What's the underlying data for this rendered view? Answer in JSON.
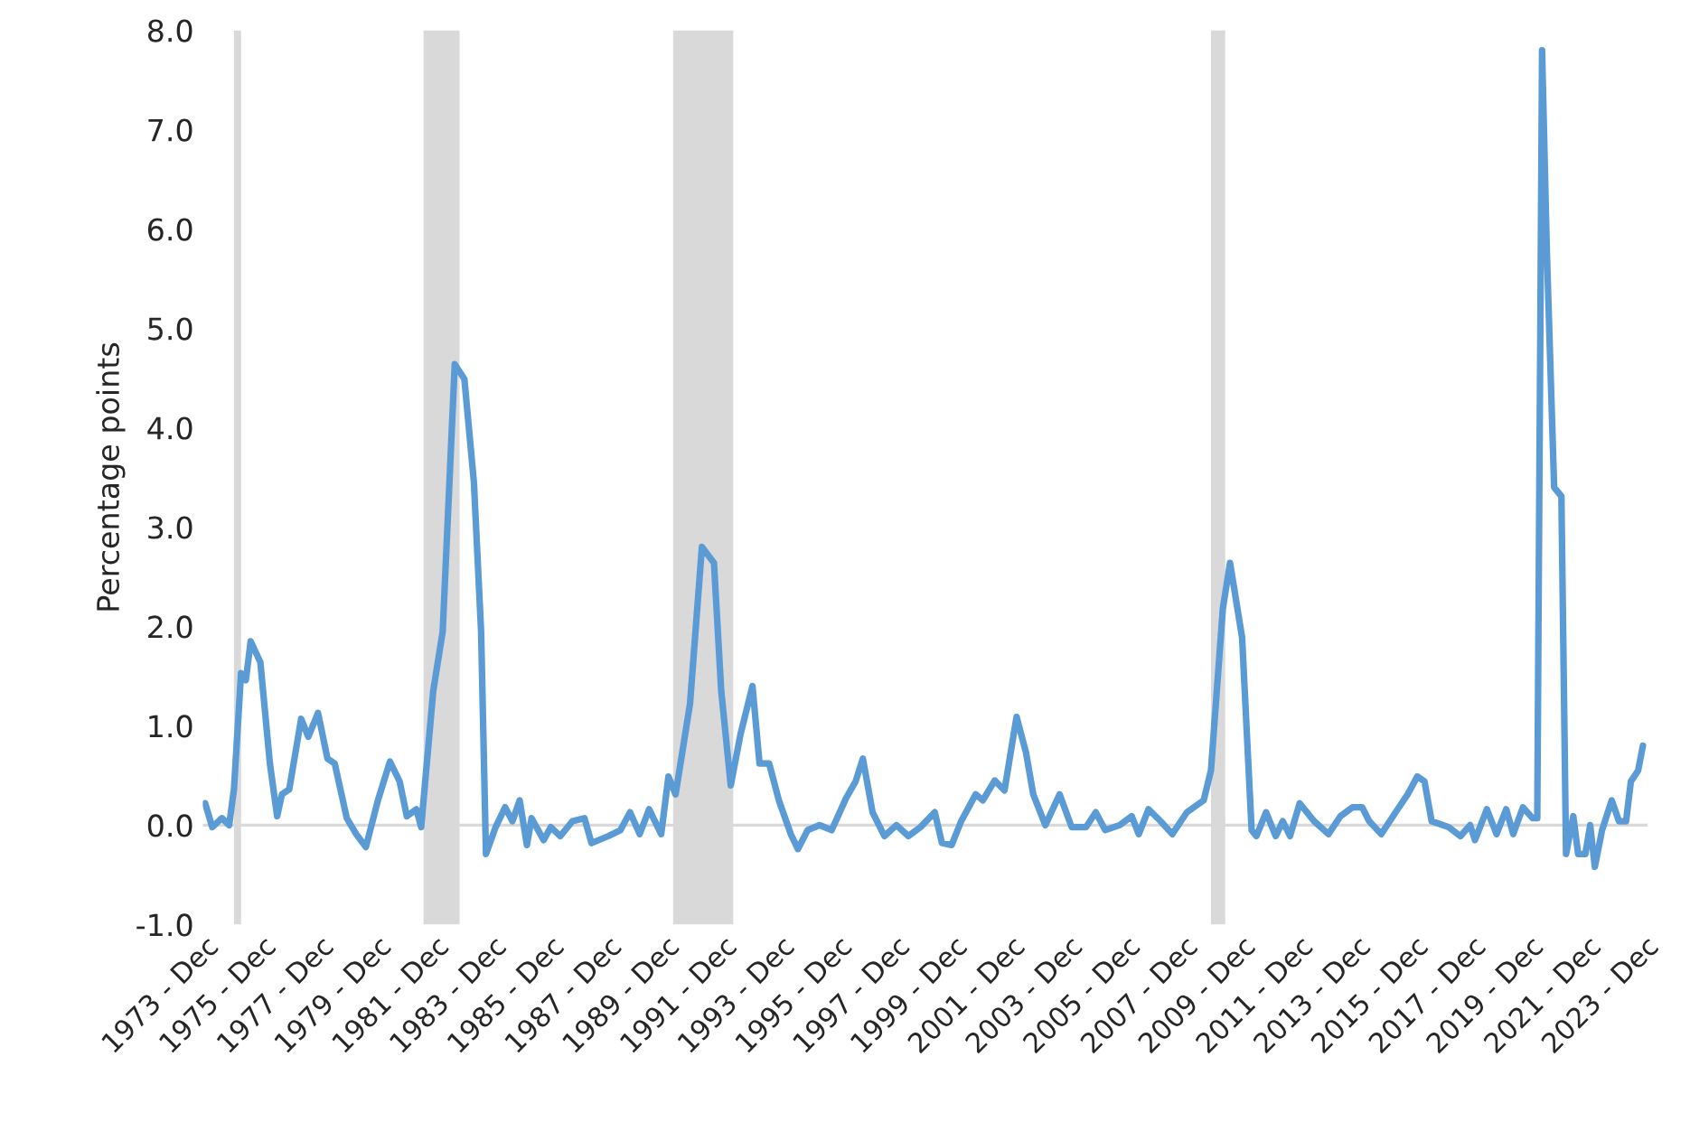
{
  "chart_data": {
    "type": "line",
    "ylabel": "Percentage points",
    "x": [
      "1973-12",
      "1974-03",
      "1974-07",
      "1974-10",
      "1974-12",
      "1975-03",
      "1975-05",
      "1975-07",
      "1975-11",
      "1976-03",
      "1976-06",
      "1976-08",
      "1976-11",
      "1977-04",
      "1977-07",
      "1977-11",
      "1978-03",
      "1978-06",
      "1978-11",
      "1979-03",
      "1979-07",
      "1979-12",
      "1980-05",
      "1980-09",
      "1980-12",
      "1981-04",
      "1981-06",
      "1981-11",
      "1982-03",
      "1982-08",
      "1982-12",
      "1983-04",
      "1983-07",
      "1983-09",
      "1984-01",
      "1984-05",
      "1984-08",
      "1984-11",
      "1985-02",
      "1985-04",
      "1985-09",
      "1985-12",
      "1986-04",
      "1986-09",
      "1987-02",
      "1987-05",
      "1987-12",
      "1988-05",
      "1988-09",
      "1989-01",
      "1989-05",
      "1989-10",
      "1990-01",
      "1990-04",
      "1990-10",
      "1991-03",
      "1991-08",
      "1991-11",
      "1992-03",
      "1992-07",
      "1992-12",
      "1993-03",
      "1993-07",
      "1993-11",
      "1994-04",
      "1994-07",
      "1994-11",
      "1995-04",
      "1995-09",
      "1996-03",
      "1996-07",
      "1996-10",
      "1997-02",
      "1997-07",
      "1997-12",
      "1998-05",
      "1998-10",
      "1999-04",
      "1999-07",
      "1999-11",
      "2000-03",
      "2000-09",
      "2000-12",
      "2001-05",
      "2001-09",
      "2002-02",
      "2002-06",
      "2002-09",
      "2003-02",
      "2003-08",
      "2004-01",
      "2004-07",
      "2004-11",
      "2005-03",
      "2005-09",
      "2006-02",
      "2006-05",
      "2006-09",
      "2007-02",
      "2007-07",
      "2008-01",
      "2008-08",
      "2008-11",
      "2009-04",
      "2009-07",
      "2009-12",
      "2010-04",
      "2010-06",
      "2010-10",
      "2011-02",
      "2011-05",
      "2011-08",
      "2011-12",
      "2012-06",
      "2012-12",
      "2013-05",
      "2013-10",
      "2014-02",
      "2014-05",
      "2014-10",
      "2015-04",
      "2015-09",
      "2016-01",
      "2016-04",
      "2016-07",
      "2017-02",
      "2017-07",
      "2017-11",
      "2018-01",
      "2018-06",
      "2018-10",
      "2019-02",
      "2019-05",
      "2019-09",
      "2020-01",
      "2020-03",
      "2020-05",
      "2020-07",
      "2020-10",
      "2021-01",
      "2021-03",
      "2021-06",
      "2021-08",
      "2021-11",
      "2022-01",
      "2022-03",
      "2022-06",
      "2022-10",
      "2023-01",
      "2023-04",
      "2023-06",
      "2023-09",
      "2023-11"
    ],
    "series": [
      {
        "color": "#5b9bd5",
        "values": [
          0.22,
          -0.02,
          0.07,
          0,
          0.36,
          1.53,
          1.46,
          1.85,
          1.64,
          0.62,
          0.09,
          0.31,
          0.36,
          1.07,
          0.89,
          1.13,
          0.67,
          0.62,
          0.07,
          -0.09,
          -0.22,
          0.25,
          0.64,
          0.44,
          0.09,
          0.16,
          -0.02,
          1.35,
          1.95,
          4.64,
          4.49,
          3.45,
          1.95,
          -0.29,
          -0.02,
          0.18,
          0.04,
          0.25,
          -0.2,
          0.07,
          -0.15,
          -0.02,
          -0.11,
          0.04,
          0.07,
          -0.18,
          -0.11,
          -0.05,
          0.13,
          -0.09,
          0.16,
          -0.09,
          0.49,
          0.31,
          1.22,
          2.8,
          2.64,
          1.35,
          0.4,
          0.91,
          1.4,
          0.62,
          0.62,
          0.25,
          -0.09,
          -0.24,
          -0.05,
          0,
          -0.05,
          0.27,
          0.44,
          0.67,
          0.13,
          -0.11,
          0,
          -0.11,
          -0.02,
          0.13,
          -0.18,
          -0.2,
          0.04,
          0.31,
          0.25,
          0.45,
          0.35,
          1.09,
          0.73,
          0.31,
          0,
          0.31,
          -0.02,
          -0.02,
          0.13,
          -0.05,
          0,
          0.09,
          -0.09,
          0.16,
          0.04,
          -0.09,
          0.13,
          0.25,
          0.55,
          2.18,
          2.64,
          1.89,
          -0.05,
          -0.11,
          0.13,
          -0.11,
          0.04,
          -0.11,
          0.22,
          0.04,
          -0.09,
          0.09,
          0.18,
          0.18,
          0.04,
          -0.09,
          0.13,
          0.31,
          0.49,
          0.44,
          0.04,
          -0.02,
          -0.11,
          0,
          -0.15,
          0.16,
          -0.09,
          0.16,
          -0.09,
          0.18,
          0.07,
          0.07,
          7.8,
          5.76,
          3.4,
          3.31,
          -0.29,
          0.09,
          -0.29,
          -0.29,
          0,
          -0.42,
          -0.05,
          0.25,
          0.04,
          0.04,
          0.44,
          0.55,
          0.8
        ]
      }
    ],
    "xlim": [
      "1973-11",
      "2024-01"
    ],
    "xticks": [
      {
        "value": "1973-12",
        "label": "1973 - Dec"
      },
      {
        "value": "1975-12",
        "label": "1975 - Dec"
      },
      {
        "value": "1977-12",
        "label": "1977 - Dec"
      },
      {
        "value": "1979-12",
        "label": "1979 - Dec"
      },
      {
        "value": "1981-12",
        "label": "1981 - Dec"
      },
      {
        "value": "1983-12",
        "label": "1983 - Dec"
      },
      {
        "value": "1985-12",
        "label": "1985 - Dec"
      },
      {
        "value": "1987-12",
        "label": "1987 - Dec"
      },
      {
        "value": "1989-12",
        "label": "1989 - Dec"
      },
      {
        "value": "1991-12",
        "label": "1991 - Dec"
      },
      {
        "value": "1993-12",
        "label": "1993 - Dec"
      },
      {
        "value": "1995-12",
        "label": "1995 - Dec"
      },
      {
        "value": "1997-12",
        "label": "1997 - Dec"
      },
      {
        "value": "1999-12",
        "label": "1999 - Dec"
      },
      {
        "value": "2001-12",
        "label": "2001 - Dec"
      },
      {
        "value": "2003-12",
        "label": "2003 - Dec"
      },
      {
        "value": "2005-12",
        "label": "2005 - Dec"
      },
      {
        "value": "2007-12",
        "label": "2007 - Dec"
      },
      {
        "value": "2009-12",
        "label": "2009 - Dec"
      },
      {
        "value": "2011-12",
        "label": "2011 - Dec"
      },
      {
        "value": "2013-12",
        "label": "2013 - Dec"
      },
      {
        "value": "2015-12",
        "label": "2015 - Dec"
      },
      {
        "value": "2017-12",
        "label": "2017 - Dec"
      },
      {
        "value": "2019-12",
        "label": "2019 - Dec"
      },
      {
        "value": "2021-12",
        "label": "2021 - Dec"
      },
      {
        "value": "2023-12",
        "label": "2023 - Dec"
      }
    ],
    "ylim": [
      -1,
      8
    ],
    "yticks": [
      {
        "value": -1,
        "label": "-1.0"
      },
      {
        "value": 0,
        "label": "0.0"
      },
      {
        "value": 1,
        "label": "1.0"
      },
      {
        "value": 2,
        "label": "2.0"
      },
      {
        "value": 3,
        "label": "3.0"
      },
      {
        "value": 4,
        "label": "4.0"
      },
      {
        "value": 5,
        "label": "5.0"
      },
      {
        "value": 6,
        "label": "6.0"
      },
      {
        "value": 7,
        "label": "7.0"
      },
      {
        "value": 8,
        "label": "8.0"
      }
    ],
    "bands": [
      {
        "axis": "x",
        "from": "1974-12",
        "to": "1975-03",
        "color": "#d9d9d9"
      },
      {
        "axis": "x",
        "from": "1981-07",
        "to": "1982-10",
        "color": "#d9d9d9"
      },
      {
        "axis": "x",
        "from": "1990-03",
        "to": "1992-04",
        "color": "#d9d9d9"
      },
      {
        "axis": "x",
        "from": "2008-11",
        "to": "2009-05",
        "color": "#d9d9d9"
      }
    ],
    "ref_lines": [
      {
        "axis": "y",
        "value": 0,
        "color": "#d9d9d9"
      }
    ],
    "grid": false,
    "marker": "none",
    "line_style": "solid"
  }
}
